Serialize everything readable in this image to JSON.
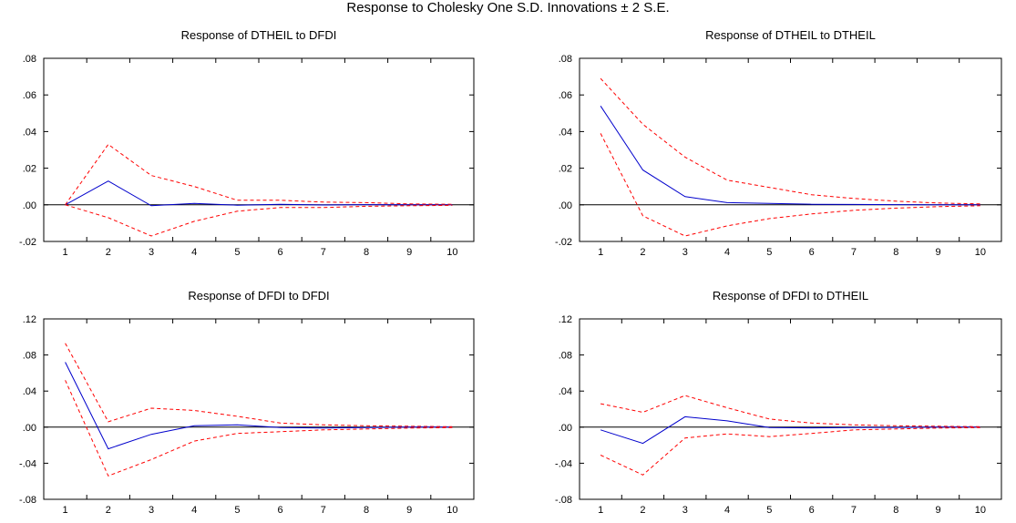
{
  "title": "Response to Cholesky One S.D. Innovations ± 2 S.E.",
  "colors": {
    "response": "#0000cc",
    "band": "#ff0000",
    "axis": "#000000",
    "zero_line": "#000000"
  },
  "chart_data": [
    {
      "type": "line",
      "title": "Response of DTHEIL to DFDI",
      "xlabel": "",
      "ylabel": "",
      "x": [
        1,
        2,
        3,
        4,
        5,
        6,
        7,
        8,
        9,
        10
      ],
      "xticks": [
        "1",
        "2",
        "3",
        "4",
        "5",
        "6",
        "7",
        "8",
        "9",
        "10"
      ],
      "ylim": [
        -0.02,
        0.08
      ],
      "yticks": [
        -0.02,
        0.0,
        0.02,
        0.04,
        0.06,
        0.08
      ],
      "ytick_labels": [
        "-.02",
        ".00",
        ".02",
        ".04",
        ".06",
        ".08"
      ],
      "zero_line": true,
      "grid": false,
      "series": [
        {
          "style": "solid",
          "color": "#0000cc",
          "values": [
            0.0,
            0.013,
            -0.0005,
            0.0008,
            -0.0002,
            0.0003,
            -0.0001,
            0.0001,
            0.0,
            0.0
          ]
        },
        {
          "style": "dashed",
          "color": "#ff0000",
          "values": [
            0.0,
            0.033,
            0.016,
            0.01,
            0.0025,
            0.0025,
            0.0015,
            0.0012,
            0.0005,
            0.0003
          ]
        },
        {
          "style": "dashed",
          "color": "#ff0000",
          "values": [
            0.0,
            -0.007,
            -0.017,
            -0.009,
            -0.0035,
            -0.0015,
            -0.0015,
            -0.0008,
            -0.0005,
            -0.0003
          ]
        }
      ]
    },
    {
      "type": "line",
      "title": "Response of DTHEIL to DTHEIL",
      "xlabel": "",
      "ylabel": "",
      "x": [
        1,
        2,
        3,
        4,
        5,
        6,
        7,
        8,
        9,
        10
      ],
      "xticks": [
        "1",
        "2",
        "3",
        "4",
        "5",
        "6",
        "7",
        "8",
        "9",
        "10"
      ],
      "ylim": [
        -0.02,
        0.08
      ],
      "yticks": [
        -0.02,
        0.0,
        0.02,
        0.04,
        0.06,
        0.08
      ],
      "ytick_labels": [
        "-.02",
        ".00",
        ".02",
        ".04",
        ".06",
        ".08"
      ],
      "zero_line": true,
      "grid": false,
      "series": [
        {
          "style": "solid",
          "color": "#0000cc",
          "values": [
            0.054,
            0.019,
            0.0045,
            0.0012,
            0.0008,
            0.0003,
            0.0002,
            0.0001,
            0.0,
            0.0
          ]
        },
        {
          "style": "dashed",
          "color": "#ff0000",
          "values": [
            0.069,
            0.044,
            0.026,
            0.0135,
            0.0095,
            0.0055,
            0.0035,
            0.002,
            0.001,
            0.0005
          ]
        },
        {
          "style": "dashed",
          "color": "#ff0000",
          "values": [
            0.039,
            -0.006,
            -0.017,
            -0.0115,
            -0.0075,
            -0.005,
            -0.003,
            -0.0018,
            -0.001,
            -0.0005
          ]
        }
      ]
    },
    {
      "type": "line",
      "title": "Response of DFDI to DFDI",
      "xlabel": "",
      "ylabel": "",
      "x": [
        1,
        2,
        3,
        4,
        5,
        6,
        7,
        8,
        9,
        10
      ],
      "xticks": [
        "1",
        "2",
        "3",
        "4",
        "5",
        "6",
        "7",
        "8",
        "9",
        "10"
      ],
      "ylim": [
        -0.08,
        0.12
      ],
      "yticks": [
        -0.08,
        -0.04,
        0.0,
        0.04,
        0.08,
        0.12
      ],
      "ytick_labels": [
        "-.08",
        "-.04",
        ".00",
        ".04",
        ".08",
        ".12"
      ],
      "zero_line": true,
      "grid": false,
      "series": [
        {
          "style": "solid",
          "color": "#0000cc",
          "values": [
            0.072,
            -0.024,
            -0.008,
            0.0015,
            0.0025,
            -0.0005,
            -0.001,
            -0.0005,
            0.0,
            0.0
          ]
        },
        {
          "style": "dashed",
          "color": "#ff0000",
          "values": [
            0.093,
            0.006,
            0.021,
            0.0185,
            0.012,
            0.0045,
            0.0025,
            0.0015,
            0.001,
            0.0005
          ]
        },
        {
          "style": "dashed",
          "color": "#ff0000",
          "values": [
            0.052,
            -0.054,
            -0.036,
            -0.0155,
            -0.007,
            -0.005,
            -0.003,
            -0.002,
            -0.001,
            -0.0005
          ]
        }
      ]
    },
    {
      "type": "line",
      "title": "Response of DFDI to DTHEIL",
      "xlabel": "",
      "ylabel": "",
      "x": [
        1,
        2,
        3,
        4,
        5,
        6,
        7,
        8,
        9,
        10
      ],
      "xticks": [
        "1",
        "2",
        "3",
        "4",
        "5",
        "6",
        "7",
        "8",
        "9",
        "10"
      ],
      "ylim": [
        -0.08,
        0.12
      ],
      "yticks": [
        -0.08,
        -0.04,
        0.0,
        0.04,
        0.08,
        0.12
      ],
      "ytick_labels": [
        "-.08",
        "-.04",
        ".00",
        ".04",
        ".08",
        ".12"
      ],
      "zero_line": true,
      "grid": false,
      "series": [
        {
          "style": "solid",
          "color": "#0000cc",
          "values": [
            -0.003,
            -0.018,
            0.0115,
            0.007,
            -0.0005,
            -0.0008,
            -0.0005,
            -0.0003,
            0.0,
            0.0
          ]
        },
        {
          "style": "dashed",
          "color": "#ff0000",
          "values": [
            0.026,
            0.0165,
            0.035,
            0.0215,
            0.009,
            0.0045,
            0.0025,
            0.0015,
            0.001,
            0.0005
          ]
        },
        {
          "style": "dashed",
          "color": "#ff0000",
          "values": [
            -0.031,
            -0.053,
            -0.012,
            -0.0075,
            -0.0105,
            -0.007,
            -0.003,
            -0.002,
            -0.001,
            -0.0005
          ]
        }
      ]
    }
  ]
}
